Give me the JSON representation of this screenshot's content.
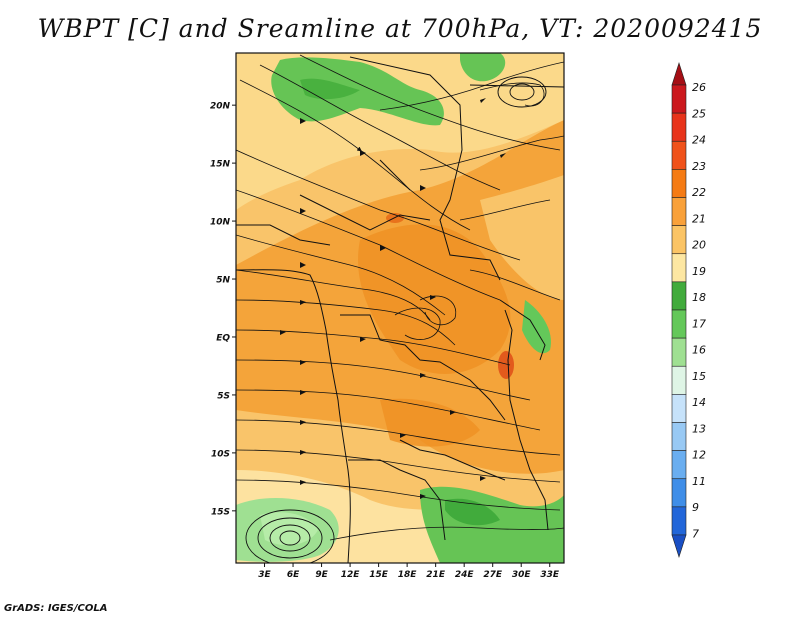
{
  "title": "WBPT [C] and Sreamline at 700hPa, VT: 2020092415",
  "footer": "GrADS: IGES/COLA",
  "map": {
    "lat_labels": [
      {
        "text": "20N",
        "lat": 20
      },
      {
        "text": "15N",
        "lat": 15
      },
      {
        "text": "10N",
        "lat": 10
      },
      {
        "text": "5N",
        "lat": 5
      },
      {
        "text": "EQ",
        "lat": 0
      },
      {
        "text": "5S",
        "lat": -5
      },
      {
        "text": "10S",
        "lat": -10
      },
      {
        "text": "15S",
        "lat": -15
      }
    ],
    "lon_labels": [
      {
        "text": "3E",
        "lon": 3
      },
      {
        "text": "6E",
        "lon": 6
      },
      {
        "text": "9E",
        "lon": 9
      },
      {
        "text": "12E",
        "lon": 12
      },
      {
        "text": "15E",
        "lon": 15
      },
      {
        "text": "18E",
        "lon": 18
      },
      {
        "text": "21E",
        "lon": 21
      },
      {
        "text": "24E",
        "lon": 24
      },
      {
        "text": "27E",
        "lon": 27
      },
      {
        "text": "30E",
        "lon": 30
      },
      {
        "text": "33E",
        "lon": 33
      }
    ],
    "lon_range": [
      0,
      34.5
    ],
    "lat_range": [
      -19.5,
      24.5
    ]
  },
  "colorbar": {
    "labels": [
      "26",
      "25",
      "24",
      "23",
      "22",
      "21",
      "20",
      "19",
      "18",
      "17",
      "16",
      "15",
      "14",
      "13",
      "12",
      "11",
      "9",
      "7"
    ],
    "colors": [
      "#a50f15",
      "#cb181d",
      "#e8341b",
      "#f0521a",
      "#f57b14",
      "#f9a13a",
      "#fbc465",
      "#fde7a2",
      "#41ab3c",
      "#64c85a",
      "#9fe092",
      "#dff5e6",
      "#c6e2fa",
      "#98c9f4",
      "#6aaef0",
      "#3f8ee8",
      "#2266d9",
      "#1a4fc4"
    ]
  }
}
